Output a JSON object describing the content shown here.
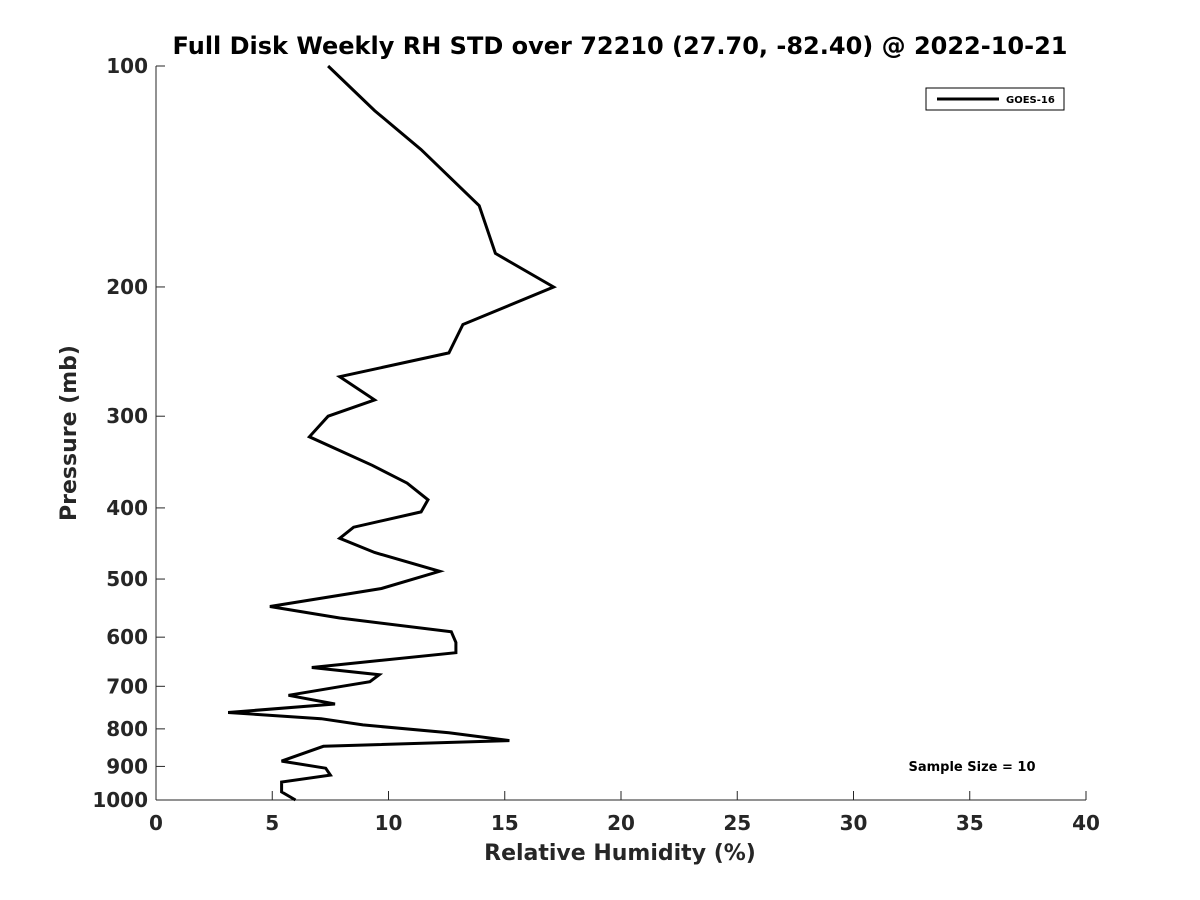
{
  "chart_data": {
    "type": "line",
    "title": "Full Disk Weekly RH STD over 72210 (27.70, -82.40) @ 2022-10-21",
    "xlabel": "Relative Humidity (%)",
    "ylabel": "Pressure (mb)",
    "xlim": [
      0,
      40
    ],
    "ylim": [
      100,
      1000
    ],
    "yscale": "log",
    "y_reversed": true,
    "xticks": [
      0,
      5,
      10,
      15,
      20,
      25,
      30,
      35,
      40
    ],
    "yticks": [
      100,
      200,
      300,
      400,
      500,
      600,
      700,
      800,
      900,
      1000
    ],
    "grid": false,
    "legend_position": "top-right",
    "series": [
      {
        "name": "GOES-16",
        "color": "#000000",
        "x": [
          7.4,
          9.4,
          11.4,
          13.9,
          14.6,
          17.1,
          13.2,
          12.6,
          7.9,
          9.4,
          7.4,
          6.6,
          9.3,
          10.8,
          11.7,
          11.4,
          8.5,
          7.9,
          9.4,
          12.2,
          9.7,
          4.9,
          7.9,
          12.7,
          12.9,
          12.9,
          6.7,
          9.6,
          9.2,
          8.0,
          5.7,
          7.7,
          3.1,
          7.1,
          8.9,
          12.6,
          15.2,
          7.2,
          5.4,
          7.3,
          7.5,
          5.4,
          5.4,
          6.0
        ],
        "y": [
          100,
          115,
          130,
          155,
          180,
          200,
          225,
          246,
          265,
          285,
          300,
          320,
          350,
          370,
          390,
          405,
          425,
          440,
          460,
          488,
          515,
          545,
          565,
          590,
          610,
          630,
          660,
          675,
          690,
          700,
          720,
          740,
          760,
          775,
          790,
          810,
          830,
          845,
          885,
          905,
          925,
          945,
          975,
          1000
        ]
      }
    ],
    "annotations": [
      {
        "text": "Sample Size = 10"
      }
    ]
  }
}
